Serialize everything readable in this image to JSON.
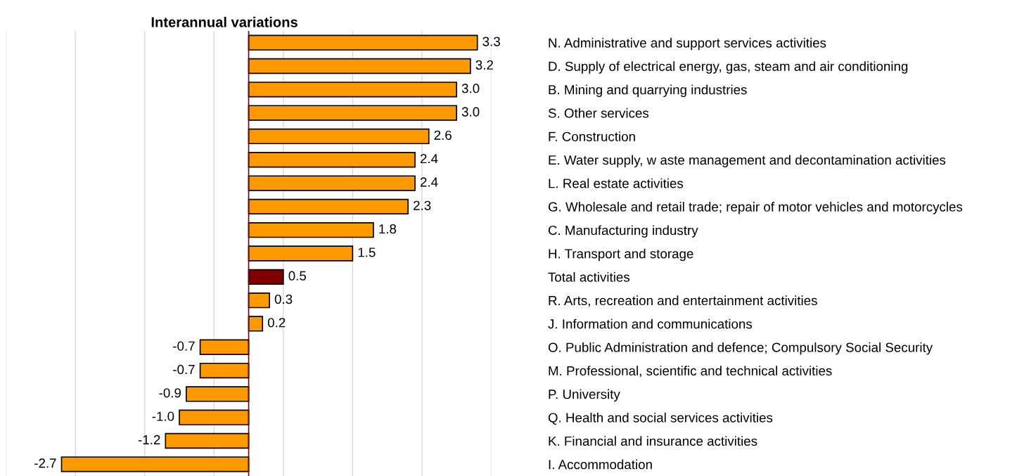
{
  "chart_data": {
    "type": "bar",
    "orientation": "horizontal",
    "title": "Interannual variations",
    "categories": [
      "N. Administrative and support services activities",
      "D. Supply of electrical energy, gas, steam and air conditioning",
      "B. Mining and quarrying industries",
      "S. Other services",
      "F. Construction",
      "E. Water supply, w aste management and decontamination activities",
      "L. Real estate activities",
      "G. Wholesale and retail trade; repair of motor vehicles and motorcycles",
      "C. Manufacturing industry",
      "H. Transport and storage",
      "Total activities",
      "R. Arts, recreation and entertainment activities",
      "J. Information and communications",
      "O. Public Administration and defence; Compulsory Social Security",
      "M. Professional, scientific and technical activities",
      "P. University",
      "Q. Health and social services activities",
      "K. Financial and insurance activities",
      "I. Accommodation"
    ],
    "values": [
      3.3,
      3.2,
      3.0,
      3.0,
      2.6,
      2.4,
      2.4,
      2.3,
      1.8,
      1.5,
      0.5,
      0.3,
      0.2,
      -0.7,
      -0.7,
      -0.9,
      -1.0,
      -1.2,
      -2.7
    ],
    "value_labels": [
      "3.3",
      "3.2",
      "3.0",
      "3.0",
      "2.6",
      "2.4",
      "2.4",
      "2.3",
      "1.8",
      "1.5",
      "0.5",
      "0.3",
      "0.2",
      "-0.7",
      "-0.7",
      "-0.9",
      "-1.0",
      "-1.2",
      "-2.7"
    ],
    "colors": [
      "#ff9900",
      "#ff9900",
      "#ff9900",
      "#ff9900",
      "#ff9900",
      "#ff9900",
      "#ff9900",
      "#ff9900",
      "#ff9900",
      "#ff9900",
      "#800000",
      "#ff9900",
      "#ff9900",
      "#ff9900",
      "#ff9900",
      "#ff9900",
      "#ff9900",
      "#ff9900",
      "#ff9900"
    ],
    "xlim": [
      -3.5,
      3.5
    ],
    "xticks": [
      {
        "value": -3.5,
        "label": null
      },
      {
        "value": -2.5,
        "label": null
      },
      {
        "value": -1.5,
        "label": null
      },
      {
        "value": -0.5,
        "label": null
      },
      {
        "value": 0.5,
        "label": null
      },
      {
        "value": 1.5,
        "label": null
      },
      {
        "value": 2.5,
        "label": null
      },
      {
        "value": 3.5,
        "label": null
      }
    ],
    "ref_lines": [
      {
        "axis": "x",
        "value": 0,
        "color": "#800000",
        "line_style": "solid"
      }
    ],
    "grid": "x",
    "legend": false
  }
}
